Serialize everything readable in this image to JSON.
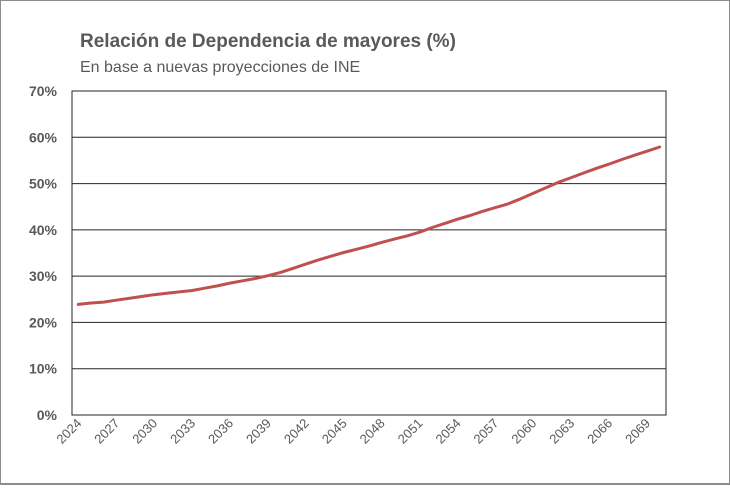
{
  "chart_data": {
    "type": "line",
    "title": "Relación de Dependencia de mayores (%)",
    "subtitle": "En base a nuevas proyecciones de INE",
    "xlabel": "",
    "ylabel": "",
    "ylim": [
      0,
      70
    ],
    "yticks": [
      "0%",
      "10%",
      "20%",
      "30%",
      "40%",
      "50%",
      "60%",
      "70%"
    ],
    "xticks": [
      "2024",
      "2027",
      "2030",
      "2033",
      "2036",
      "2039",
      "2042",
      "2045",
      "2048",
      "2051",
      "2054",
      "2057",
      "2060",
      "2063",
      "2066",
      "2069"
    ],
    "grid": true,
    "legend": "none",
    "line_color": "#c0504d",
    "x": [
      2024,
      2025,
      2026,
      2027,
      2028,
      2029,
      2030,
      2031,
      2032,
      2033,
      2034,
      2035,
      2036,
      2037,
      2038,
      2039,
      2040,
      2041,
      2042,
      2043,
      2044,
      2045,
      2046,
      2047,
      2048,
      2049,
      2050,
      2051,
      2052,
      2053,
      2054,
      2055,
      2056,
      2057,
      2058,
      2059,
      2060,
      2061,
      2062,
      2063,
      2064,
      2065,
      2066,
      2067,
      2068,
      2069,
      2070
    ],
    "values": [
      23.9,
      24.2,
      24.4,
      24.8,
      25.2,
      25.6,
      26.0,
      26.3,
      26.6,
      26.9,
      27.4,
      27.9,
      28.5,
      29.0,
      29.5,
      30.1,
      30.8,
      31.7,
      32.6,
      33.5,
      34.3,
      35.1,
      35.8,
      36.5,
      37.3,
      38.0,
      38.7,
      39.5,
      40.5,
      41.4,
      42.3,
      43.1,
      44.0,
      44.8,
      45.6,
      46.7,
      47.9,
      49.1,
      50.3,
      51.3,
      52.3,
      53.3,
      54.2,
      55.2,
      56.1,
      57.0,
      57.9
    ]
  }
}
